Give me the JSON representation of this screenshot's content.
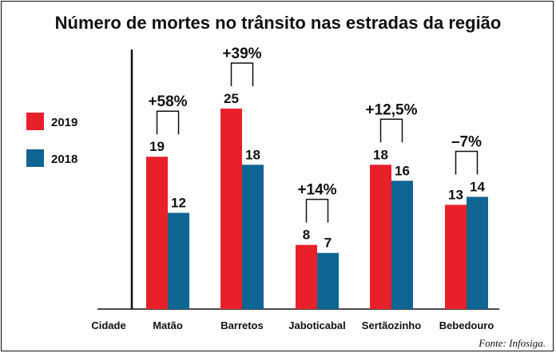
{
  "chart_data": {
    "type": "bar",
    "title": "Número de mortes no trânsito nas estradas da região",
    "xlabel": "Cidade",
    "ylabel": "",
    "categories": [
      "Matão",
      "Barretos",
      "Jaboticabal",
      "Sertãozinho",
      "Bebedouro"
    ],
    "series": [
      {
        "name": "2019",
        "values": [
          19,
          25,
          8,
          18,
          13
        ],
        "color": "#e8202a"
      },
      {
        "name": "2018",
        "values": [
          12,
          18,
          7,
          16,
          14
        ],
        "color": "#0e6591"
      }
    ],
    "changes": [
      "+58%",
      "+39%",
      "+14%",
      "+12,5%",
      "–7%"
    ],
    "ylim": [
      0,
      25
    ],
    "grid": false,
    "legend": "left",
    "source": "Fonte: Infosiga."
  }
}
